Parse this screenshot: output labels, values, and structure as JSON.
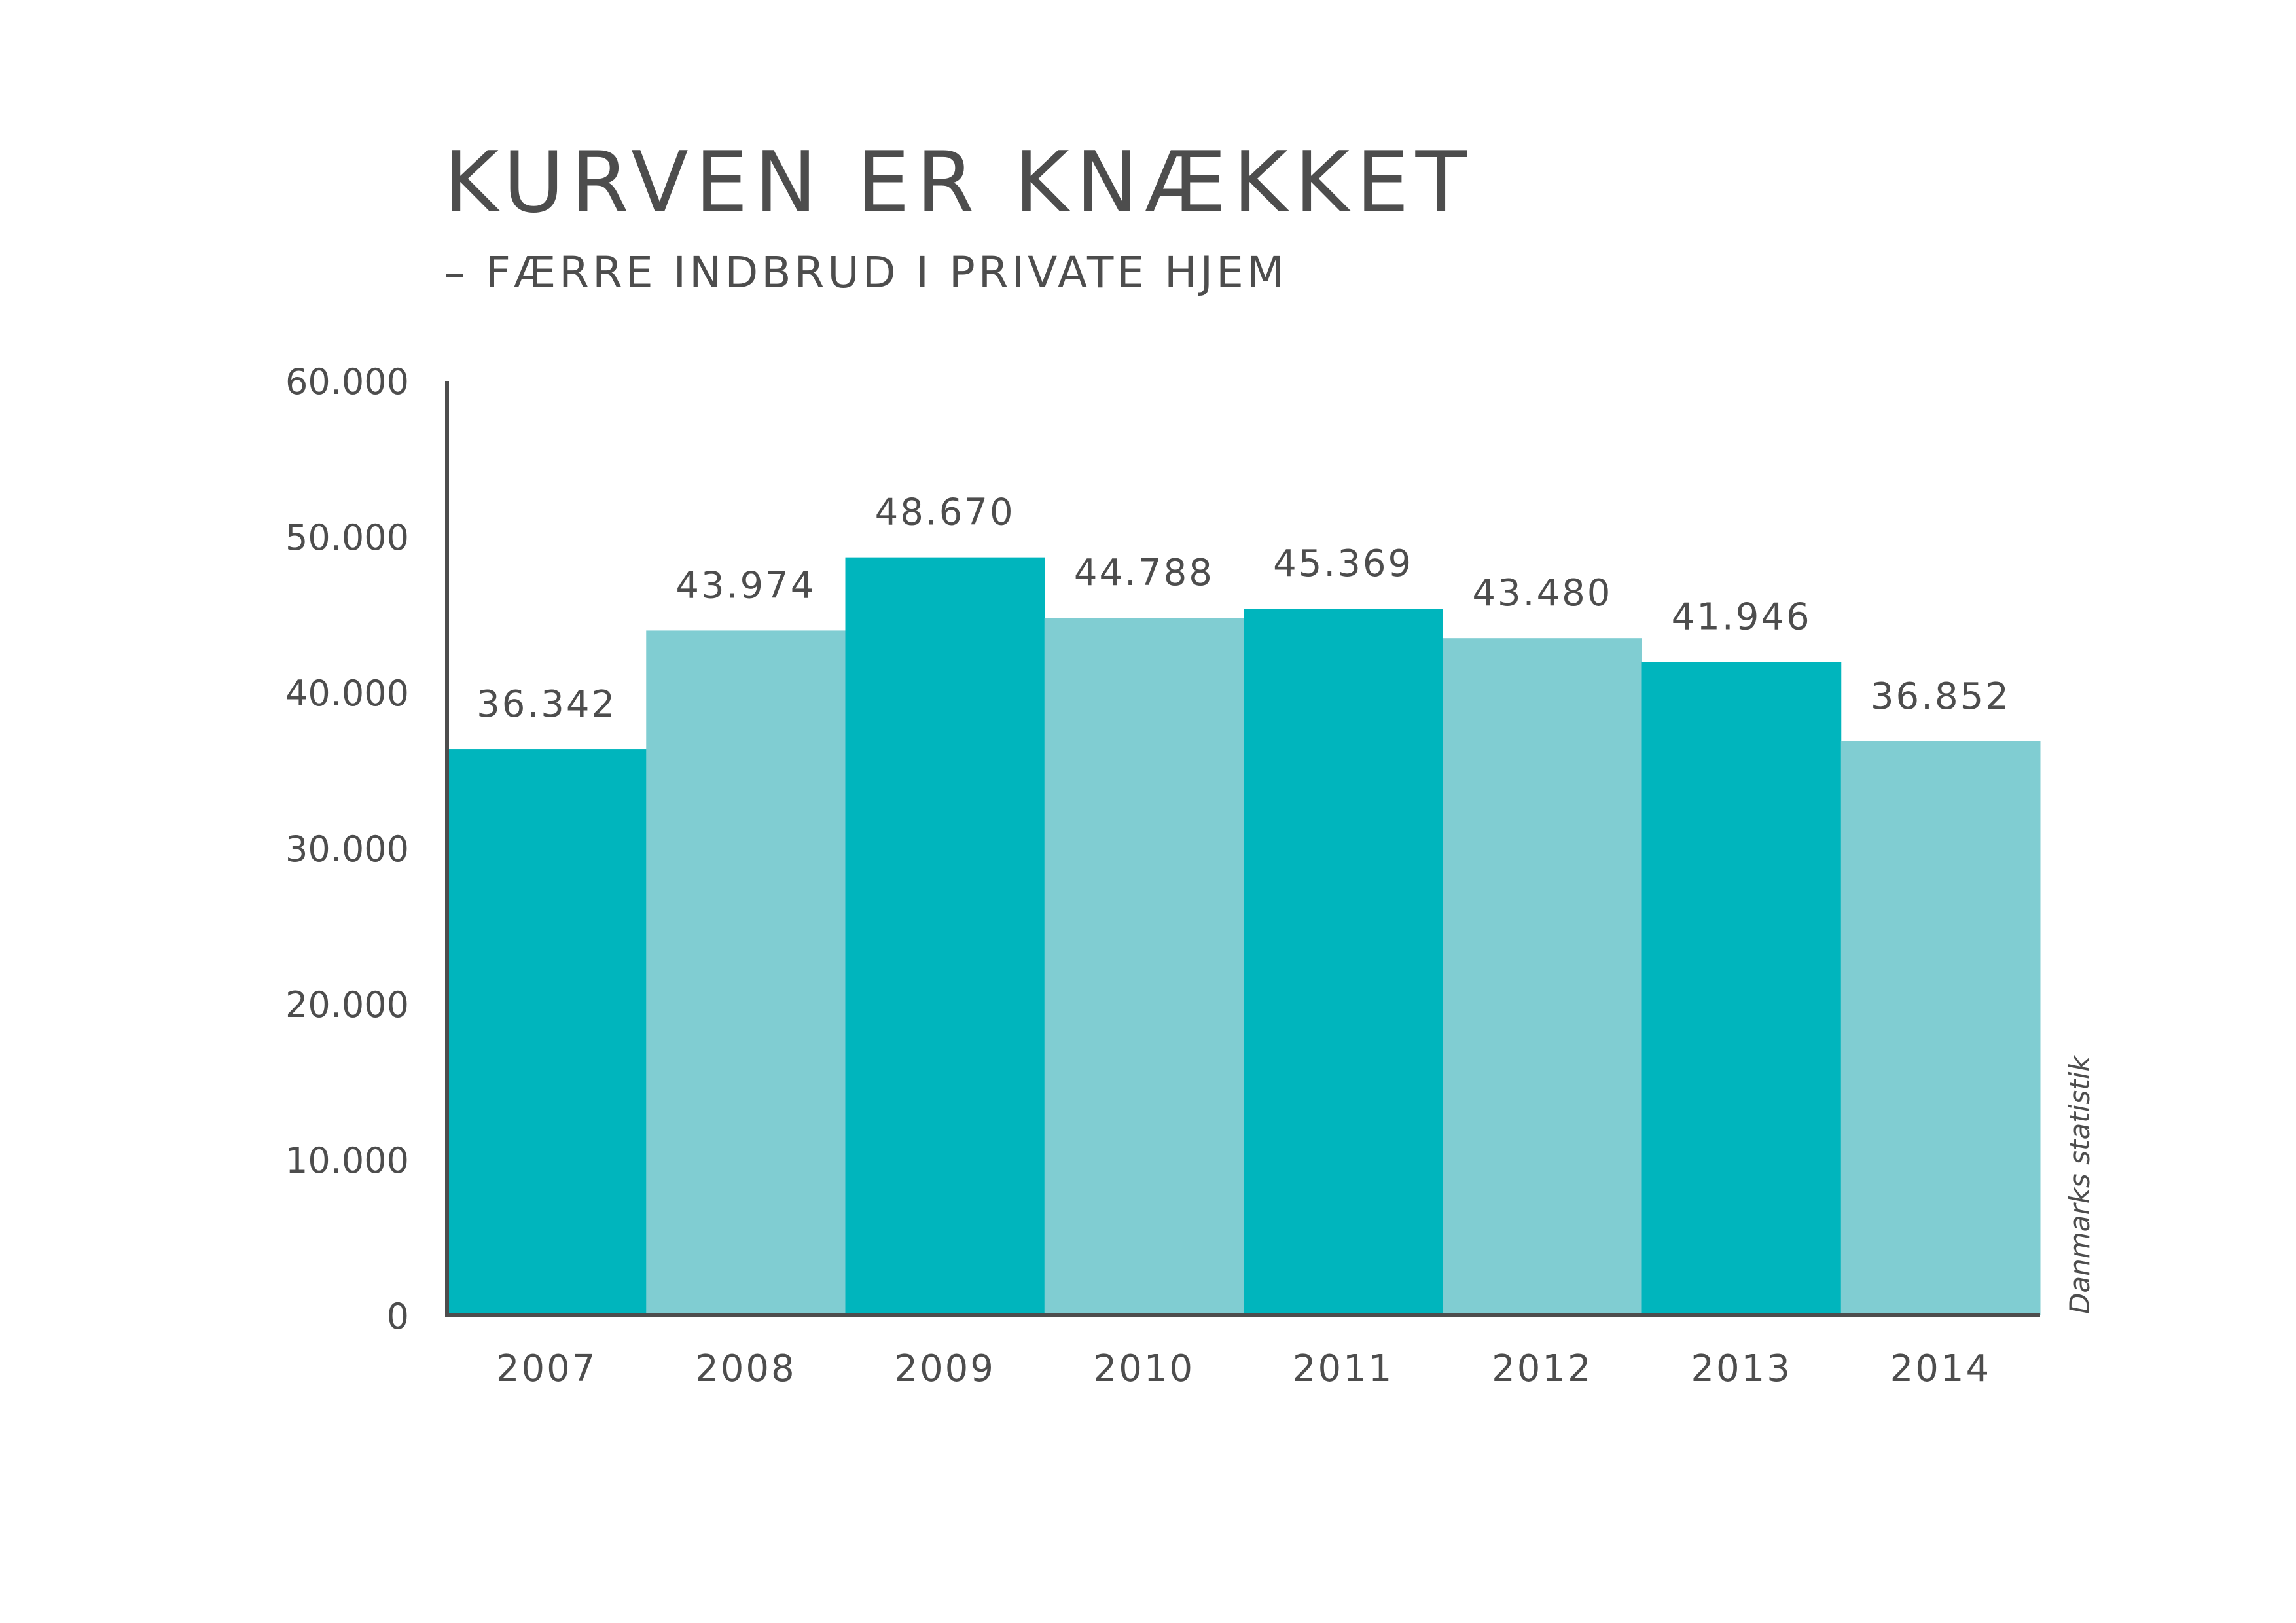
{
  "chart_data": {
    "type": "bar",
    "title": "KURVEN ER KNÆKKET",
    "subtitle": "– FÆRRE INDBRUD I PRIVATE HJEM",
    "categories": [
      "2007",
      "2008",
      "2009",
      "2010",
      "2011",
      "2012",
      "2013",
      "2014"
    ],
    "values": [
      36342,
      43974,
      48670,
      44788,
      45369,
      43480,
      41946,
      36852
    ],
    "value_labels": [
      "36.342",
      "43.974",
      "48.670",
      "44.788",
      "45.369",
      "43.480",
      "41.946",
      "36.852"
    ],
    "ylim": [
      0,
      60000
    ],
    "yticks": [
      0,
      10000,
      20000,
      30000,
      40000,
      50000,
      60000
    ],
    "ytick_labels": [
      "0",
      "10.000",
      "20.000",
      "30.000",
      "40.000",
      "50.000",
      "60.000"
    ],
    "xlabel": "",
    "ylabel": "",
    "grid": false,
    "source": "Danmarks statistik",
    "colors": {
      "dark": "#00b5bd",
      "light": "#80cdd2",
      "axis": "#4d4d4d",
      "text": "#4d4d4d"
    }
  }
}
